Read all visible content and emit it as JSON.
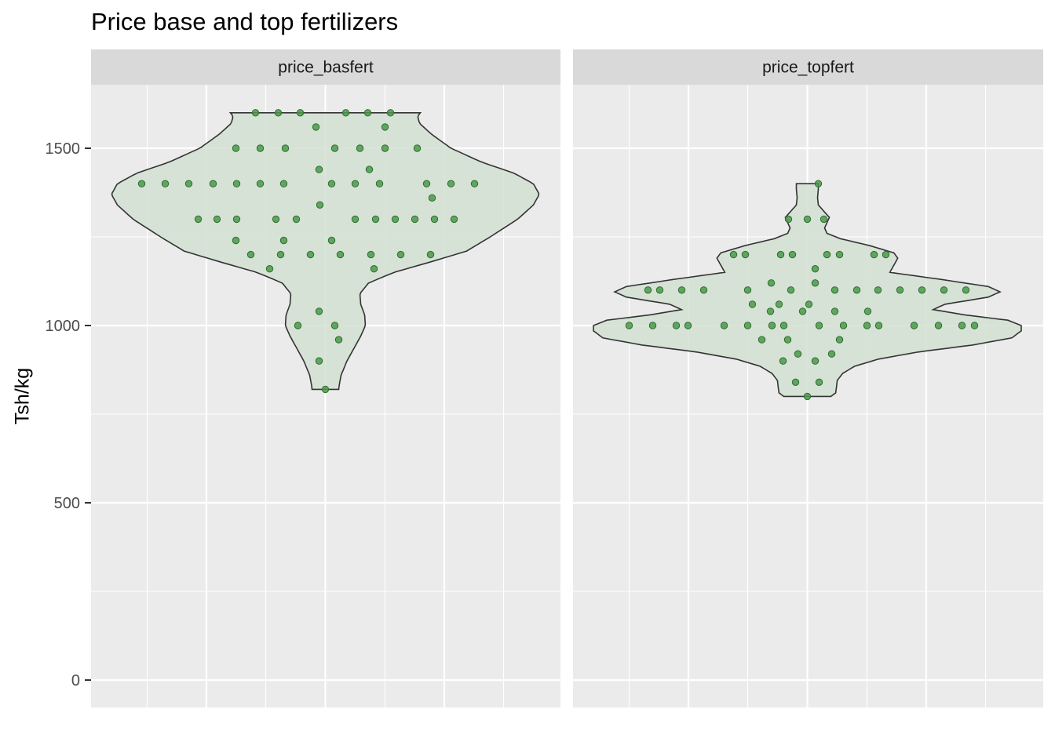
{
  "chart_data": {
    "type": "violin",
    "title": "Price base and top fertilizers",
    "xlabel": "",
    "ylabel": "Tsh/kg",
    "ylim": [
      -75,
      1690
    ],
    "y_ticks": [
      0,
      500,
      1000,
      1500
    ],
    "grid": true,
    "colors": {
      "panel_bg": "#ebebeb",
      "strip_bg": "#d9d9d9",
      "grid": "#ffffff",
      "violin_fill": "#d1e0d1",
      "violin_stroke": "#333333",
      "point_fill": "#4a9a4a",
      "point_stroke": "#2e6b2e"
    },
    "panels": [
      {
        "strip": "price_basfert",
        "violin_range": [
          820,
          1600
        ],
        "max_halfwidth": 545,
        "profile": [
          [
            820,
            34
          ],
          [
            830,
            35
          ],
          [
            860,
            40
          ],
          [
            900,
            55
          ],
          [
            940,
            75
          ],
          [
            970,
            90
          ],
          [
            1000,
            102
          ],
          [
            1030,
            100
          ],
          [
            1060,
            90
          ],
          [
            1090,
            88
          ],
          [
            1120,
            110
          ],
          [
            1150,
            175
          ],
          [
            1180,
            270
          ],
          [
            1210,
            360
          ],
          [
            1250,
            420
          ],
          [
            1300,
            490
          ],
          [
            1340,
            530
          ],
          [
            1370,
            545
          ],
          [
            1400,
            530
          ],
          [
            1430,
            480
          ],
          [
            1460,
            400
          ],
          [
            1500,
            320
          ],
          [
            1540,
            270
          ],
          [
            1570,
            240
          ],
          [
            1590,
            235
          ],
          [
            1600,
            242
          ]
        ],
        "points": [
          [
            -234,
            1400
          ],
          [
            -204,
            1400
          ],
          [
            -174,
            1400
          ],
          [
            -143,
            1400
          ],
          [
            -113,
            1400
          ],
          [
            -83,
            1400
          ],
          [
            -53,
            1400
          ],
          [
            8,
            1400
          ],
          [
            38,
            1400
          ],
          [
            69,
            1400
          ],
          [
            129,
            1400
          ],
          [
            160,
            1400
          ],
          [
            190,
            1400
          ],
          [
            -89,
            1600
          ],
          [
            -60,
            1600
          ],
          [
            -32,
            1600
          ],
          [
            26,
            1600
          ],
          [
            54,
            1600
          ],
          [
            83,
            1600
          ],
          [
            -12,
            1560
          ],
          [
            76,
            1560
          ],
          [
            -114,
            1500
          ],
          [
            -83,
            1500
          ],
          [
            -51,
            1500
          ],
          [
            12,
            1500
          ],
          [
            44,
            1500
          ],
          [
            76,
            1500
          ],
          [
            117,
            1500
          ],
          [
            -8,
            1440
          ],
          [
            56,
            1440
          ],
          [
            -7,
            1340
          ],
          [
            136,
            1360
          ],
          [
            -162,
            1300
          ],
          [
            -138,
            1300
          ],
          [
            -113,
            1300
          ],
          [
            -63,
            1300
          ],
          [
            -37,
            1300
          ],
          [
            38,
            1300
          ],
          [
            64,
            1300
          ],
          [
            89,
            1300
          ],
          [
            114,
            1300
          ],
          [
            139,
            1300
          ],
          [
            164,
            1300
          ],
          [
            -114,
            1240
          ],
          [
            -53,
            1240
          ],
          [
            8,
            1240
          ],
          [
            -95,
            1200
          ],
          [
            -57,
            1200
          ],
          [
            -19,
            1200
          ],
          [
            19,
            1200
          ],
          [
            58,
            1200
          ],
          [
            96,
            1200
          ],
          [
            134,
            1200
          ],
          [
            -71,
            1160
          ],
          [
            62,
            1160
          ],
          [
            -8,
            1040
          ],
          [
            -35,
            1000
          ],
          [
            12,
            1000
          ],
          [
            17,
            960
          ],
          [
            -8,
            900
          ],
          [
            0,
            820
          ]
        ]
      },
      {
        "strip": "price_topfert",
        "violin_range": [
          800,
          1400
        ],
        "max_halfwidth": 272,
        "profile": [
          [
            800,
            30
          ],
          [
            810,
            36
          ],
          [
            825,
            37
          ],
          [
            845,
            38
          ],
          [
            865,
            45
          ],
          [
            885,
            60
          ],
          [
            905,
            90
          ],
          [
            925,
            140
          ],
          [
            945,
            210
          ],
          [
            965,
            260
          ],
          [
            985,
            272
          ],
          [
            1000,
            272
          ],
          [
            1015,
            255
          ],
          [
            1030,
            200
          ],
          [
            1045,
            160
          ],
          [
            1060,
            175
          ],
          [
            1080,
            230
          ],
          [
            1095,
            245
          ],
          [
            1110,
            230
          ],
          [
            1130,
            170
          ],
          [
            1150,
            105
          ],
          [
            1170,
            110
          ],
          [
            1190,
            115
          ],
          [
            1205,
            110
          ],
          [
            1225,
            80
          ],
          [
            1245,
            42
          ],
          [
            1260,
            25
          ],
          [
            1275,
            22
          ],
          [
            1290,
            25
          ],
          [
            1305,
            28
          ],
          [
            1320,
            22
          ],
          [
            1340,
            14
          ],
          [
            1360,
            13
          ],
          [
            1385,
            14
          ],
          [
            1400,
            14
          ]
        ],
        "points": [
          [
            -227,
            1000
          ],
          [
            -197,
            1000
          ],
          [
            -167,
            1000
          ],
          [
            -152,
            1000
          ],
          [
            -106,
            1000
          ],
          [
            -76,
            1000
          ],
          [
            -45,
            1000
          ],
          [
            -30,
            1000
          ],
          [
            15,
            1000
          ],
          [
            46,
            1000
          ],
          [
            76,
            1000
          ],
          [
            91,
            1000
          ],
          [
            136,
            1000
          ],
          [
            167,
            1000
          ],
          [
            197,
            1000
          ],
          [
            213,
            1000
          ],
          [
            -203,
            1100
          ],
          [
            -188,
            1100
          ],
          [
            -160,
            1100
          ],
          [
            -132,
            1100
          ],
          [
            -76,
            1100
          ],
          [
            -21,
            1100
          ],
          [
            35,
            1100
          ],
          [
            63,
            1100
          ],
          [
            90,
            1100
          ],
          [
            118,
            1100
          ],
          [
            146,
            1100
          ],
          [
            174,
            1100
          ],
          [
            202,
            1100
          ],
          [
            -94,
            1200
          ],
          [
            -79,
            1200
          ],
          [
            -34,
            1200
          ],
          [
            -19,
            1200
          ],
          [
            25,
            1200
          ],
          [
            41,
            1200
          ],
          [
            85,
            1200
          ],
          [
            100,
            1200
          ],
          [
            -24,
            1300
          ],
          [
            0,
            1300
          ],
          [
            21,
            1300
          ],
          [
            14,
            1400
          ],
          [
            -46,
            1120
          ],
          [
            10,
            1120
          ],
          [
            -70,
            1060
          ],
          [
            -36,
            1060
          ],
          [
            2,
            1060
          ],
          [
            -47,
            1040
          ],
          [
            -6,
            1040
          ],
          [
            35,
            1040
          ],
          [
            10,
            1160
          ],
          [
            -58,
            960
          ],
          [
            -25,
            960
          ],
          [
            41,
            960
          ],
          [
            -31,
            900
          ],
          [
            10,
            900
          ],
          [
            -12,
            920
          ],
          [
            31,
            920
          ],
          [
            -15,
            840
          ],
          [
            15,
            840
          ],
          [
            0,
            800
          ],
          [
            77,
            1040
          ]
        ]
      }
    ]
  }
}
